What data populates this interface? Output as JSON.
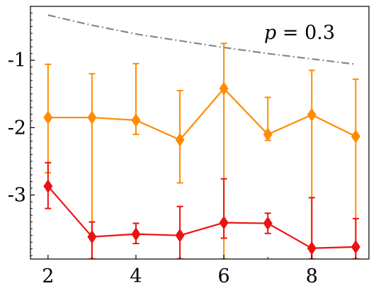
{
  "chart_data": {
    "type": "line",
    "title": "",
    "xlabel": "",
    "ylabel": "",
    "xlim": [
      1.6,
      9.3
    ],
    "ylim": [
      -3.95,
      -0.2
    ],
    "x": [
      2,
      3,
      4,
      5,
      6,
      7,
      8,
      9
    ],
    "x_ticks": [
      2,
      4,
      6,
      8
    ],
    "x_tick_labels": [
      "2",
      "4",
      "6",
      "8"
    ],
    "y_ticks": [
      -1,
      -2,
      -3
    ],
    "y_tick_labels": [
      "-1",
      "-2",
      "-3"
    ],
    "annotation": {
      "var": "p",
      "rest": " = 0.3"
    },
    "series": [
      {
        "color": "#ff8c00",
        "marker": "diamond",
        "values": [
          -1.85,
          -1.85,
          -1.89,
          -2.18,
          -1.42,
          -2.1,
          -1.81,
          -2.13
        ],
        "err_low": [
          -2.67,
          -3.95,
          -2.1,
          -2.82,
          -3.95,
          -2.19,
          -3.95,
          -3.95
        ],
        "err_high": [
          -1.06,
          -1.2,
          -1.05,
          -1.45,
          -0.75,
          -1.55,
          -1.15,
          -1.28
        ]
      },
      {
        "color": "#ee1111",
        "marker": "diamond",
        "values": [
          -2.87,
          -3.62,
          -3.58,
          -3.6,
          -3.41,
          -3.42,
          -3.79,
          -3.77
        ],
        "err_low": [
          -3.2,
          -3.95,
          -3.72,
          -3.95,
          -3.64,
          -3.57,
          -3.95,
          -3.95
        ],
        "err_high": [
          -2.52,
          -3.4,
          -3.42,
          -3.17,
          -2.76,
          -3.27,
          -3.04,
          -3.35
        ]
      },
      {
        "color": "#888888",
        "style": "dashdot",
        "values": [
          -0.33,
          -0.48,
          -0.61,
          -0.71,
          -0.81,
          -0.9,
          -0.98,
          -1.06
        ]
      }
    ]
  }
}
